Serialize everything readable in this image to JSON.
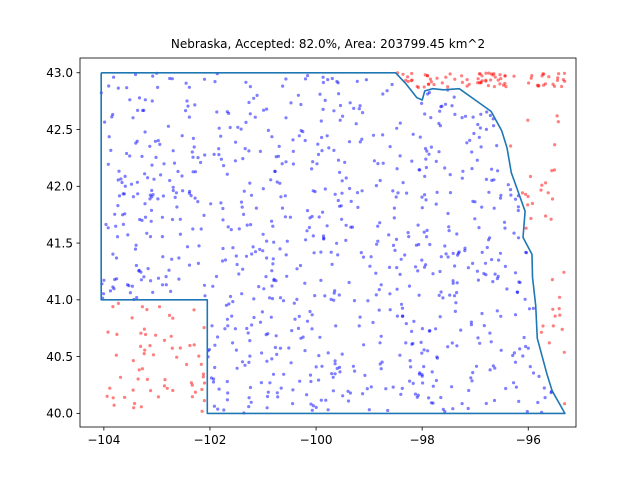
{
  "chart_data": {
    "type": "scatter",
    "title": "Nebraska, Accepted: 82.0%, Area: 203799.45 km^2",
    "xlabel": "",
    "ylabel": "",
    "xlim": [
      -104.45,
      -95.1
    ],
    "ylim": [
      39.88,
      43.13
    ],
    "x_ticks": [
      -104,
      -102,
      -100,
      -98,
      -96
    ],
    "y_ticks": [
      40.0,
      40.5,
      41.0,
      41.5,
      42.0,
      42.5,
      43.0
    ],
    "x_tick_labels": [
      "−104",
      "−102",
      "−100",
      "−98",
      "−96"
    ],
    "y_tick_labels": [
      "40.0",
      "40.5",
      "41.0",
      "41.5",
      "42.0",
      "42.5",
      "43.0"
    ],
    "grid": false,
    "legend": "none",
    "colors": {
      "accepted": "#0000ff",
      "rejected": "#ff0000",
      "boundary": "#1f77b4"
    },
    "accepted_fraction": 0.82,
    "total_points": 1000,
    "boundary_points": [
      [
        -104.05,
        43.0
      ],
      [
        -98.5,
        43.0
      ],
      [
        -98.3,
        42.9
      ],
      [
        -98.1,
        42.78
      ],
      [
        -98.0,
        42.76
      ],
      [
        -97.95,
        42.84
      ],
      [
        -97.8,
        42.86
      ],
      [
        -97.6,
        42.85
      ],
      [
        -97.3,
        42.86
      ],
      [
        -97.0,
        42.76
      ],
      [
        -96.7,
        42.66
      ],
      [
        -96.5,
        42.49
      ],
      [
        -96.4,
        42.34
      ],
      [
        -96.32,
        42.12
      ],
      [
        -96.22,
        41.99
      ],
      [
        -96.06,
        41.78
      ],
      [
        -96.1,
        41.55
      ],
      [
        -95.93,
        41.4
      ],
      [
        -95.92,
        41.2
      ],
      [
        -95.86,
        40.95
      ],
      [
        -95.83,
        40.66
      ],
      [
        -95.65,
        40.35
      ],
      [
        -95.55,
        40.2
      ],
      [
        -95.31,
        40.0
      ],
      [
        -102.05,
        40.0
      ],
      [
        -102.05,
        41.0
      ],
      [
        -104.05,
        41.0
      ],
      [
        -104.05,
        43.0
      ]
    ],
    "rejected_regions": [
      {
        "xmin": -104.0,
        "xmax": -102.1,
        "ymin": 40.0,
        "ymax": 40.99
      },
      {
        "xmin": -98.5,
        "xmax": -95.3,
        "ymin": 42.87,
        "ymax": 43.0
      },
      {
        "xmin": -96.6,
        "xmax": -95.3,
        "ymin": 40.0,
        "ymax": 42.7
      }
    ]
  }
}
